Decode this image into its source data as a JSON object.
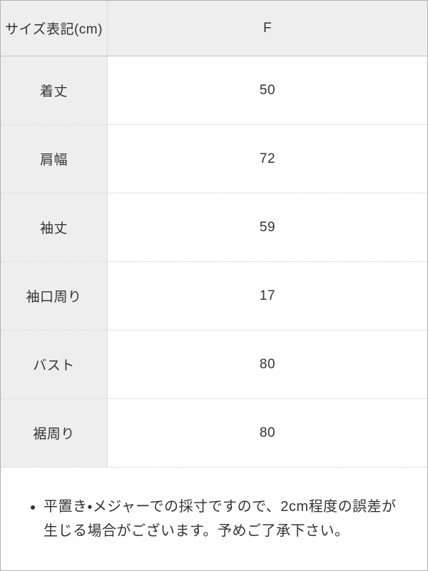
{
  "table": {
    "header": {
      "label": "サイズ表記(cm)",
      "value": "F"
    },
    "rows": [
      {
        "label": "着丈",
        "value": "50"
      },
      {
        "label": "肩幅",
        "value": "72"
      },
      {
        "label": "袖丈",
        "value": "59"
      },
      {
        "label": "袖口周り",
        "value": "17"
      },
      {
        "label": "バスト",
        "value": "80"
      },
      {
        "label": "裾周り",
        "value": "80"
      }
    ]
  },
  "note": {
    "text": "平置き・メジャーでの採寸ですので、2cm程度の誤差が生じる場合がございます。予めご了承下さい。"
  },
  "colors": {
    "cell_background": "#eeeeee",
    "outer_border": "#b2b2b2",
    "inner_border": "#c9c9c9",
    "text": "#333333"
  }
}
